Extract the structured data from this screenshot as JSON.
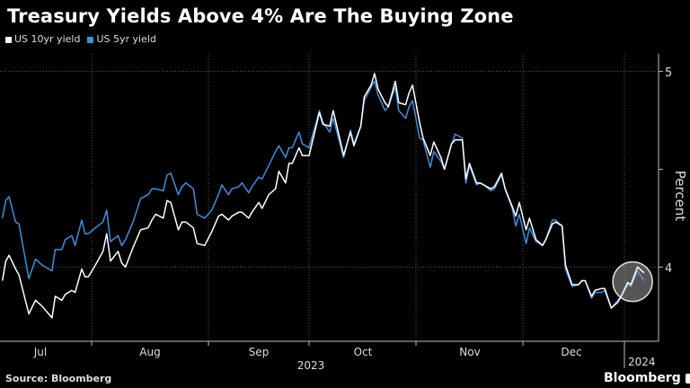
{
  "title": "Treasury Yields Above 4% Are The Buying Zone",
  "source": "Source: Bloomberg",
  "brand": "Bloomberg",
  "chart_data": {
    "type": "line",
    "title": "Treasury Yields Above 4% Are The Buying Zone",
    "ylabel": "Percent",
    "xlabel": "",
    "ylim": [
      3.62,
      5.09
    ],
    "y_ticks": [
      "5",
      "4"
    ],
    "x_ticks": [
      "Jul",
      "Aug",
      "Sep",
      "Oct",
      "Nov",
      "Dec"
    ],
    "year_labels": [
      "2023",
      "2024"
    ],
    "grid": true,
    "legend": "top-left",
    "highlight": "circle around the latest readings",
    "colors": {
      "us10": "#ffffff",
      "us5": "#3d8fe0",
      "highlight": "#9a9a9a"
    },
    "x": [
      "2023-07-05",
      "2023-07-06",
      "2023-07-07",
      "2023-07-09",
      "2023-07-10",
      "2023-07-13",
      "2023-07-15",
      "2023-07-17",
      "2023-07-20",
      "2023-07-21",
      "2023-07-23",
      "2023-07-24",
      "2023-07-26",
      "2023-07-27",
      "2023-07-29",
      "2023-07-30",
      "2023-07-31",
      "2023-08-02",
      "2023-08-04",
      "2023-08-05",
      "2023-08-06",
      "2023-08-08",
      "2023-08-09",
      "2023-08-10",
      "2023-08-12",
      "2023-08-14",
      "2023-08-16",
      "2023-08-17",
      "2023-08-18",
      "2023-08-20",
      "2023-08-21",
      "2023-08-22",
      "2023-08-24",
      "2023-08-25",
      "2023-08-26",
      "2023-08-28",
      "2023-08-29",
      "2023-08-31",
      "2023-09-02",
      "2023-09-04",
      "2023-09-05",
      "2023-09-07",
      "2023-09-08",
      "2023-09-10",
      "2023-09-11",
      "2023-09-13",
      "2023-09-14",
      "2023-09-16",
      "2023-09-17",
      "2023-09-19",
      "2023-09-21",
      "2023-09-22",
      "2023-09-24",
      "2023-09-25",
      "2023-09-26",
      "2023-09-28",
      "2023-09-29",
      "2023-10-01",
      "2023-10-04",
      "2023-10-05",
      "2023-10-07",
      "2023-10-08",
      "2023-10-10",
      "2023-10-11",
      "2023-10-13",
      "2023-10-14",
      "2023-10-16",
      "2023-10-17",
      "2023-10-19",
      "2023-10-20",
      "2023-10-21",
      "2023-10-23",
      "2023-10-24",
      "2023-10-26",
      "2023-10-27",
      "2023-10-29",
      "2023-10-30",
      "2023-10-31",
      "2023-11-02",
      "2023-11-03",
      "2023-11-05",
      "2023-11-06",
      "2023-11-08",
      "2023-11-09",
      "2023-11-11",
      "2023-11-12",
      "2023-11-14",
      "2023-11-15",
      "2023-11-16",
      "2023-11-18",
      "2023-11-19",
      "2023-11-20",
      "2023-11-22",
      "2023-11-23",
      "2023-11-25",
      "2023-11-26",
      "2023-11-28",
      "2023-11-29",
      "2023-11-30",
      "2023-12-02",
      "2023-12-03",
      "2023-12-05",
      "2023-12-07",
      "2023-12-08",
      "2023-12-10",
      "2023-12-11",
      "2023-12-13",
      "2023-12-14",
      "2023-12-16",
      "2023-12-18",
      "2023-12-19",
      "2023-12-20",
      "2023-12-22",
      "2023-12-23",
      "2023-12-25",
      "2023-12-26",
      "2023-12-28",
      "2023-12-30",
      "2023-12-31",
      "2024-01-02",
      "2024-01-03",
      "2024-01-05",
      "2024-01-07"
    ],
    "series": [
      {
        "name": "US 10yr yield",
        "values": [
          3.93,
          4.03,
          4.06,
          3.99,
          3.96,
          3.76,
          3.83,
          3.8,
          3.74,
          3.85,
          3.83,
          3.86,
          3.88,
          3.87,
          3.99,
          3.95,
          3.95,
          4.01,
          4.08,
          4.17,
          4.03,
          4.08,
          4.02,
          4.0,
          4.1,
          4.19,
          4.2,
          4.24,
          4.27,
          4.25,
          4.34,
          4.33,
          4.19,
          4.23,
          4.23,
          4.2,
          4.12,
          4.11,
          4.18,
          4.26,
          4.27,
          4.24,
          4.26,
          4.28,
          4.28,
          4.25,
          4.28,
          4.33,
          4.3,
          4.37,
          4.4,
          4.49,
          4.43,
          4.53,
          4.53,
          4.61,
          4.57,
          4.57,
          4.79,
          4.73,
          4.72,
          4.8,
          4.65,
          4.57,
          4.69,
          4.62,
          4.72,
          4.87,
          4.93,
          4.99,
          4.91,
          4.84,
          4.82,
          4.95,
          4.84,
          4.83,
          4.89,
          4.93,
          4.74,
          4.66,
          4.57,
          4.64,
          4.56,
          4.5,
          4.63,
          4.65,
          4.65,
          4.45,
          4.53,
          4.43,
          4.43,
          4.42,
          4.4,
          4.41,
          4.48,
          4.4,
          4.31,
          4.26,
          4.33,
          4.19,
          4.25,
          4.14,
          4.11,
          4.14,
          4.22,
          4.23,
          4.21,
          4.01,
          3.91,
          3.91,
          3.93,
          3.93,
          3.85,
          3.88,
          3.89,
          3.89,
          3.79,
          3.82,
          3.85,
          3.92,
          3.91,
          4.0,
          3.97
        ]
      },
      {
        "name": "US 5yr yield",
        "values": [
          4.25,
          4.34,
          4.36,
          4.23,
          4.22,
          3.94,
          4.04,
          4.01,
          3.98,
          4.09,
          4.09,
          4.14,
          4.16,
          4.11,
          4.24,
          4.17,
          4.17,
          4.2,
          4.23,
          4.29,
          4.13,
          4.16,
          4.11,
          4.14,
          4.23,
          4.35,
          4.37,
          4.4,
          4.4,
          4.39,
          4.47,
          4.48,
          4.37,
          4.41,
          4.43,
          4.4,
          4.27,
          4.25,
          4.29,
          4.37,
          4.42,
          4.37,
          4.4,
          4.41,
          4.43,
          4.38,
          4.41,
          4.46,
          4.45,
          4.52,
          4.59,
          4.62,
          4.56,
          4.61,
          4.61,
          4.69,
          4.63,
          4.61,
          4.8,
          4.74,
          4.69,
          4.76,
          4.63,
          4.56,
          4.7,
          4.63,
          4.72,
          4.85,
          4.92,
          4.95,
          4.88,
          4.8,
          4.82,
          4.92,
          4.8,
          4.76,
          4.82,
          4.85,
          4.66,
          4.65,
          4.51,
          4.59,
          4.54,
          4.5,
          4.63,
          4.68,
          4.66,
          4.43,
          4.52,
          4.42,
          4.43,
          4.42,
          4.39,
          4.4,
          4.47,
          4.4,
          4.3,
          4.21,
          4.27,
          4.12,
          4.2,
          4.13,
          4.11,
          4.14,
          4.24,
          4.24,
          4.21,
          3.99,
          3.9,
          3.91,
          3.93,
          3.93,
          3.84,
          3.87,
          3.87,
          3.88,
          3.79,
          3.83,
          3.85,
          3.91,
          3.9,
          3.98,
          3.93
        ]
      }
    ]
  }
}
